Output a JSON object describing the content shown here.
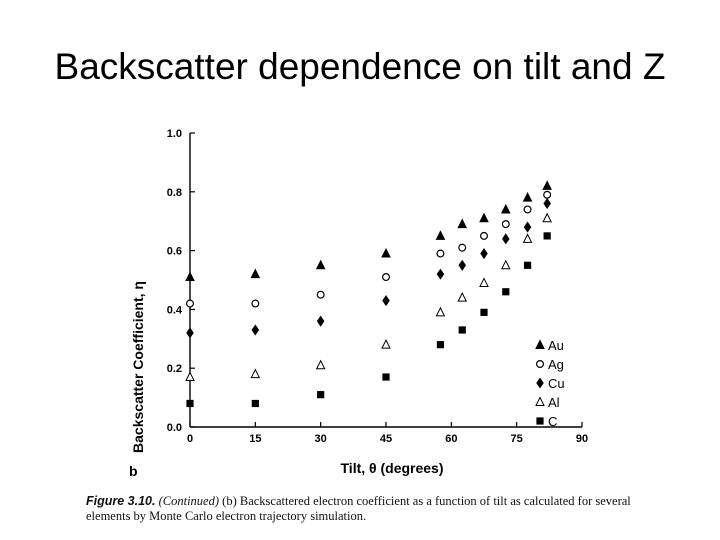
{
  "slide": {
    "title": "Backscatter dependence on tilt and Z"
  },
  "figure": {
    "panel_label": "b",
    "caption_label": "Figure 3.10.",
    "caption_continued": "(Continued)",
    "caption_text": " (b) Backscattered electron coefficient as a function of tilt as calculated for several elements by Monte Carlo electron trajectory simulation."
  },
  "chart_data": {
    "type": "scatter",
    "xlabel": "Tilt, θ (degrees)",
    "ylabel": "Backscatter Coefficient, η",
    "xlim": [
      0,
      90
    ],
    "ylim": [
      0,
      1.0
    ],
    "x_ticks": [
      0,
      15,
      30,
      45,
      60,
      75,
      90
    ],
    "y_ticks": [
      0.0,
      0.2,
      0.4,
      0.6,
      0.8,
      1.0
    ],
    "x_tick_labels": [
      "0",
      "15",
      "30",
      "45",
      "60",
      "75",
      "90"
    ],
    "y_tick_labels": [
      "0.0",
      "0.2",
      "0.4",
      "0.6",
      "0.8",
      "1.0"
    ],
    "grid": false,
    "legend_position": "bottom-right",
    "series": [
      {
        "name": "Au",
        "marker": "filled-triangle",
        "x": [
          0,
          15,
          30,
          45,
          57.5,
          62.5,
          67.5,
          72.5,
          77.5,
          82
        ],
        "y": [
          0.51,
          0.52,
          0.55,
          0.59,
          0.65,
          0.69,
          0.71,
          0.74,
          0.78,
          0.82
        ]
      },
      {
        "name": "Ag",
        "marker": "open-circle",
        "x": [
          0,
          15,
          30,
          45,
          57.5,
          62.5,
          67.5,
          72.5,
          77.5,
          82
        ],
        "y": [
          0.42,
          0.42,
          0.45,
          0.51,
          0.59,
          0.61,
          0.65,
          0.69,
          0.74,
          0.79
        ]
      },
      {
        "name": "Cu",
        "marker": "filled-diamond",
        "x": [
          0,
          15,
          30,
          45,
          57.5,
          62.5,
          67.5,
          72.5,
          77.5,
          82
        ],
        "y": [
          0.32,
          0.33,
          0.36,
          0.43,
          0.52,
          0.55,
          0.59,
          0.64,
          0.68,
          0.76
        ]
      },
      {
        "name": "Al",
        "marker": "open-triangle",
        "x": [
          0,
          15,
          30,
          45,
          57.5,
          62.5,
          67.5,
          72.5,
          77.5,
          82
        ],
        "y": [
          0.17,
          0.18,
          0.21,
          0.28,
          0.39,
          0.44,
          0.49,
          0.55,
          0.64,
          0.71
        ]
      },
      {
        "name": "C",
        "marker": "filled-square",
        "x": [
          0,
          15,
          30,
          45,
          57.5,
          62.5,
          67.5,
          72.5,
          77.5,
          82
        ],
        "y": [
          0.08,
          0.08,
          0.11,
          0.17,
          0.28,
          0.33,
          0.39,
          0.46,
          0.55,
          0.65
        ]
      }
    ]
  }
}
